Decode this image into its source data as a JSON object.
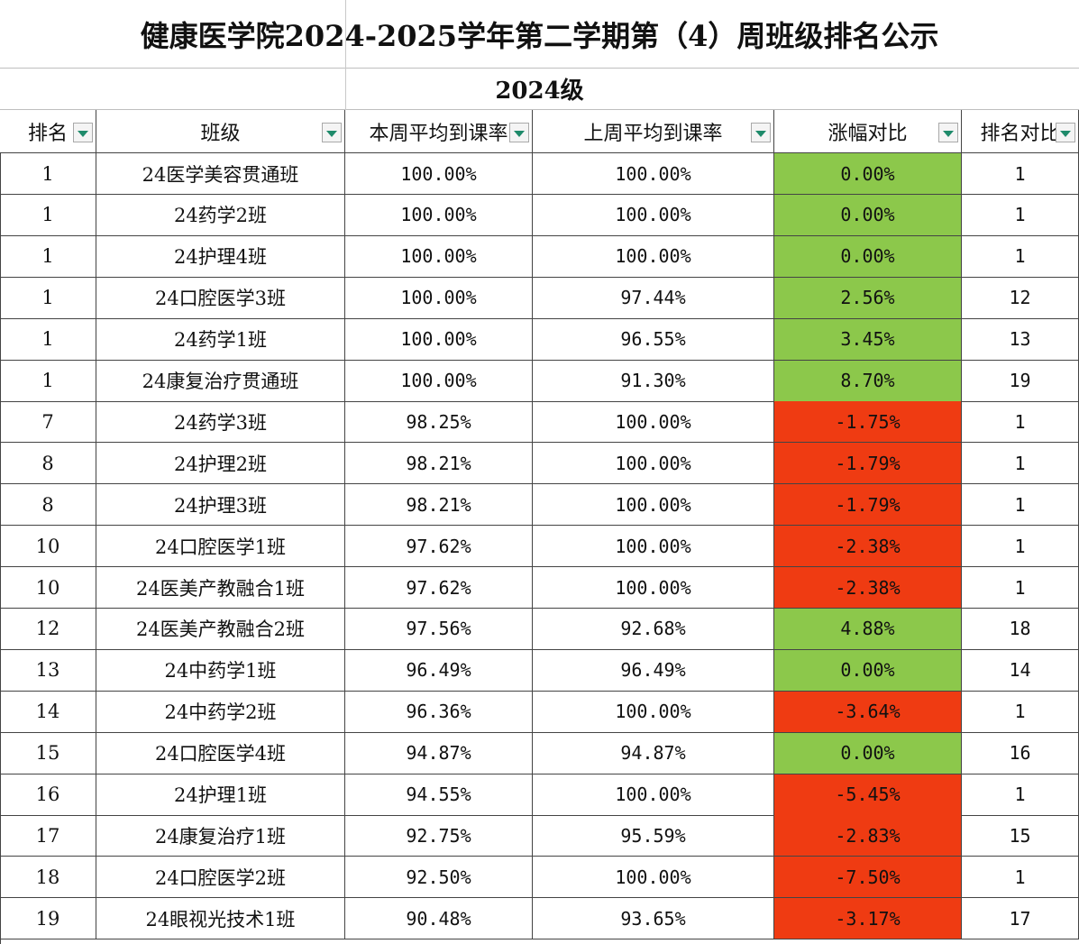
{
  "title": "健康医学院2024-2025学年第二学期第（4）周班级排名公示",
  "subtitle": "2024级",
  "headers": [
    "排名",
    "班级",
    "本周平均到课率",
    "上周平均到课率",
    "涨幅对比",
    "排名对比"
  ],
  "colors": {
    "increase": "#8cc84b",
    "decrease": "#ef3b12",
    "filter_arrow": "#1e8a6a"
  },
  "rows": [
    {
      "rank": "1",
      "class": "24医学美容贯通班",
      "this_week": "100.00%",
      "last_week": "100.00%",
      "change": "0.00%",
      "rank_compare": "1"
    },
    {
      "rank": "1",
      "class": "24药学2班",
      "this_week": "100.00%",
      "last_week": "100.00%",
      "change": "0.00%",
      "rank_compare": "1"
    },
    {
      "rank": "1",
      "class": "24护理4班",
      "this_week": "100.00%",
      "last_week": "100.00%",
      "change": "0.00%",
      "rank_compare": "1"
    },
    {
      "rank": "1",
      "class": "24口腔医学3班",
      "this_week": "100.00%",
      "last_week": "97.44%",
      "change": "2.56%",
      "rank_compare": "12"
    },
    {
      "rank": "1",
      "class": "24药学1班",
      "this_week": "100.00%",
      "last_week": "96.55%",
      "change": "3.45%",
      "rank_compare": "13"
    },
    {
      "rank": "1",
      "class": "24康复治疗贯通班",
      "this_week": "100.00%",
      "last_week": "91.30%",
      "change": "8.70%",
      "rank_compare": "19"
    },
    {
      "rank": "7",
      "class": "24药学3班",
      "this_week": "98.25%",
      "last_week": "100.00%",
      "change": "-1.75%",
      "rank_compare": "1"
    },
    {
      "rank": "8",
      "class": "24护理2班",
      "this_week": "98.21%",
      "last_week": "100.00%",
      "change": "-1.79%",
      "rank_compare": "1"
    },
    {
      "rank": "8",
      "class": "24护理3班",
      "this_week": "98.21%",
      "last_week": "100.00%",
      "change": "-1.79%",
      "rank_compare": "1"
    },
    {
      "rank": "10",
      "class": "24口腔医学1班",
      "this_week": "97.62%",
      "last_week": "100.00%",
      "change": "-2.38%",
      "rank_compare": "1"
    },
    {
      "rank": "10",
      "class": "24医美产教融合1班",
      "this_week": "97.62%",
      "last_week": "100.00%",
      "change": "-2.38%",
      "rank_compare": "1"
    },
    {
      "rank": "12",
      "class": "24医美产教融合2班",
      "this_week": "97.56%",
      "last_week": "92.68%",
      "change": "4.88%",
      "rank_compare": "18"
    },
    {
      "rank": "13",
      "class": "24中药学1班",
      "this_week": "96.49%",
      "last_week": "96.49%",
      "change": "0.00%",
      "rank_compare": "14"
    },
    {
      "rank": "14",
      "class": "24中药学2班",
      "this_week": "96.36%",
      "last_week": "100.00%",
      "change": "-3.64%",
      "rank_compare": "1"
    },
    {
      "rank": "15",
      "class": "24口腔医学4班",
      "this_week": "94.87%",
      "last_week": "94.87%",
      "change": "0.00%",
      "rank_compare": "16"
    },
    {
      "rank": "16",
      "class": "24护理1班",
      "this_week": "94.55%",
      "last_week": "100.00%",
      "change": "-5.45%",
      "rank_compare": "1"
    },
    {
      "rank": "17",
      "class": "24康复治疗1班",
      "this_week": "92.75%",
      "last_week": "95.59%",
      "change": "-2.83%",
      "rank_compare": "15"
    },
    {
      "rank": "18",
      "class": "24口腔医学2班",
      "this_week": "92.50%",
      "last_week": "100.00%",
      "change": "-7.50%",
      "rank_compare": "1"
    },
    {
      "rank": "19",
      "class": "24眼视光技术1班",
      "this_week": "90.48%",
      "last_week": "93.65%",
      "change": "-3.17%",
      "rank_compare": "17"
    }
  ]
}
